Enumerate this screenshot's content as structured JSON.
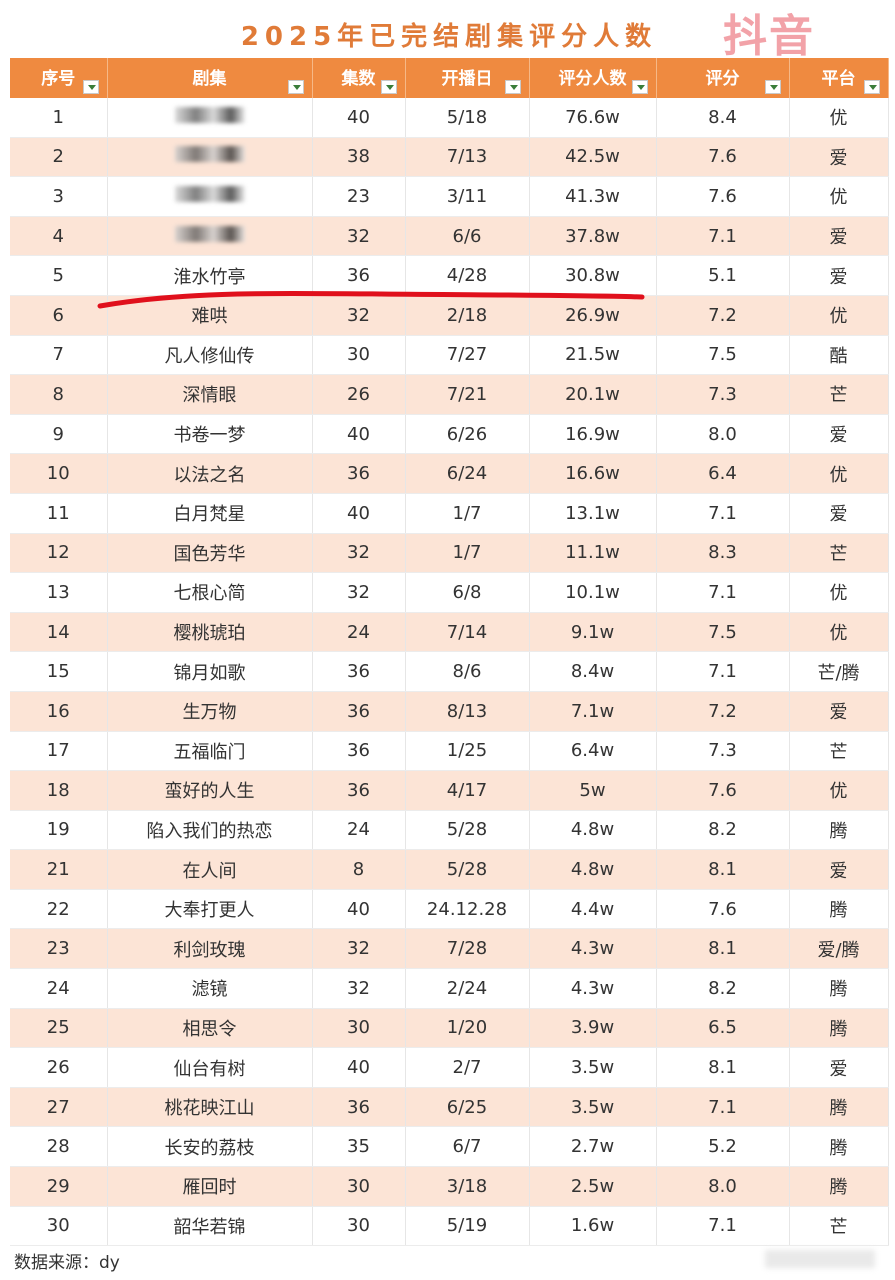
{
  "title": "2025年已完结剧集评分人数",
  "watermark": "抖音",
  "columns": [
    "序号",
    "剧集",
    "集数",
    "开播日",
    "评分人数",
    "评分",
    "平台"
  ],
  "rows": [
    {
      "no": "1",
      "name": "",
      "eps": "40",
      "date": "5/18",
      "count": "76.6w",
      "score": "8.4",
      "platform": "优",
      "obscured": true
    },
    {
      "no": "2",
      "name": "",
      "eps": "38",
      "date": "7/13",
      "count": "42.5w",
      "score": "7.6",
      "platform": "爱",
      "obscured": true
    },
    {
      "no": "3",
      "name": "",
      "eps": "23",
      "date": "3/11",
      "count": "41.3w",
      "score": "7.6",
      "platform": "优",
      "obscured": true
    },
    {
      "no": "4",
      "name": "",
      "eps": "32",
      "date": "6/6",
      "count": "37.8w",
      "score": "7.1",
      "platform": "爱",
      "obscured": true
    },
    {
      "no": "5",
      "name": "淮水竹亭",
      "eps": "36",
      "date": "4/28",
      "count": "30.8w",
      "score": "5.1",
      "platform": "爱"
    },
    {
      "no": "6",
      "name": "难哄",
      "eps": "32",
      "date": "2/18",
      "count": "26.9w",
      "score": "7.2",
      "platform": "优"
    },
    {
      "no": "7",
      "name": "凡人修仙传",
      "eps": "30",
      "date": "7/27",
      "count": "21.5w",
      "score": "7.5",
      "platform": "酷"
    },
    {
      "no": "8",
      "name": "深情眼",
      "eps": "26",
      "date": "7/21",
      "count": "20.1w",
      "score": "7.3",
      "platform": "芒"
    },
    {
      "no": "9",
      "name": "书卷一梦",
      "eps": "40",
      "date": "6/26",
      "count": "16.9w",
      "score": "8.0",
      "platform": "爱"
    },
    {
      "no": "10",
      "name": "以法之名",
      "eps": "36",
      "date": "6/24",
      "count": "16.6w",
      "score": "6.4",
      "platform": "优"
    },
    {
      "no": "11",
      "name": "白月梵星",
      "eps": "40",
      "date": "1/7",
      "count": "13.1w",
      "score": "7.1",
      "platform": "爱"
    },
    {
      "no": "12",
      "name": "国色芳华",
      "eps": "32",
      "date": "1/7",
      "count": "11.1w",
      "score": "8.3",
      "platform": "芒"
    },
    {
      "no": "13",
      "name": "七根心简",
      "eps": "32",
      "date": "6/8",
      "count": "10.1w",
      "score": "7.1",
      "platform": "优"
    },
    {
      "no": "14",
      "name": "樱桃琥珀",
      "eps": "24",
      "date": "7/14",
      "count": "9.1w",
      "score": "7.5",
      "platform": "优"
    },
    {
      "no": "15",
      "name": "锦月如歌",
      "eps": "36",
      "date": "8/6",
      "count": "8.4w",
      "score": "7.1",
      "platform": "芒/腾"
    },
    {
      "no": "16",
      "name": "生万物",
      "eps": "36",
      "date": "8/13",
      "count": "7.1w",
      "score": "7.2",
      "platform": "爱"
    },
    {
      "no": "17",
      "name": "五福临门",
      "eps": "36",
      "date": "1/25",
      "count": "6.4w",
      "score": "7.3",
      "platform": "芒"
    },
    {
      "no": "18",
      "name": "蛮好的人生",
      "eps": "36",
      "date": "4/17",
      "count": "5w",
      "score": "7.6",
      "platform": "优"
    },
    {
      "no": "19",
      "name": "陷入我们的热恋",
      "eps": "24",
      "date": "5/28",
      "count": "4.8w",
      "score": "8.2",
      "platform": "腾"
    },
    {
      "no": "21",
      "name": "在人间",
      "eps": "8",
      "date": "5/28",
      "count": "4.8w",
      "score": "8.1",
      "platform": "爱"
    },
    {
      "no": "22",
      "name": "大奉打更人",
      "eps": "40",
      "date": "24.12.28",
      "count": "4.4w",
      "score": "7.6",
      "platform": "腾"
    },
    {
      "no": "23",
      "name": "利剑玫瑰",
      "eps": "32",
      "date": "7/28",
      "count": "4.3w",
      "score": "8.1",
      "platform": "爱/腾"
    },
    {
      "no": "24",
      "name": "滤镜",
      "eps": "32",
      "date": "2/24",
      "count": "4.3w",
      "score": "8.2",
      "platform": "腾"
    },
    {
      "no": "25",
      "name": "相思令",
      "eps": "30",
      "date": "1/20",
      "count": "3.9w",
      "score": "6.5",
      "platform": "腾"
    },
    {
      "no": "26",
      "name": "仙台有树",
      "eps": "40",
      "date": "2/7",
      "count": "3.5w",
      "score": "8.1",
      "platform": "爱"
    },
    {
      "no": "27",
      "name": "桃花映江山",
      "eps": "36",
      "date": "6/25",
      "count": "3.5w",
      "score": "7.1",
      "platform": "腾"
    },
    {
      "no": "28",
      "name": "长安的荔枝",
      "eps": "35",
      "date": "6/7",
      "count": "2.7w",
      "score": "5.2",
      "platform": "腾"
    },
    {
      "no": "29",
      "name": "雁回时",
      "eps": "30",
      "date": "3/18",
      "count": "2.5w",
      "score": "8.0",
      "platform": "腾"
    },
    {
      "no": "30",
      "name": "韶华若锦",
      "eps": "30",
      "date": "5/19",
      "count": "1.6w",
      "score": "7.1",
      "platform": "芒"
    }
  ],
  "footer": "数据来源：dy",
  "colors": {
    "header": "#ef8a40",
    "title": "#e07b38",
    "stripe": "#fce4d6",
    "annotation": "#e0101c",
    "watermark": "#f2a2a8"
  }
}
